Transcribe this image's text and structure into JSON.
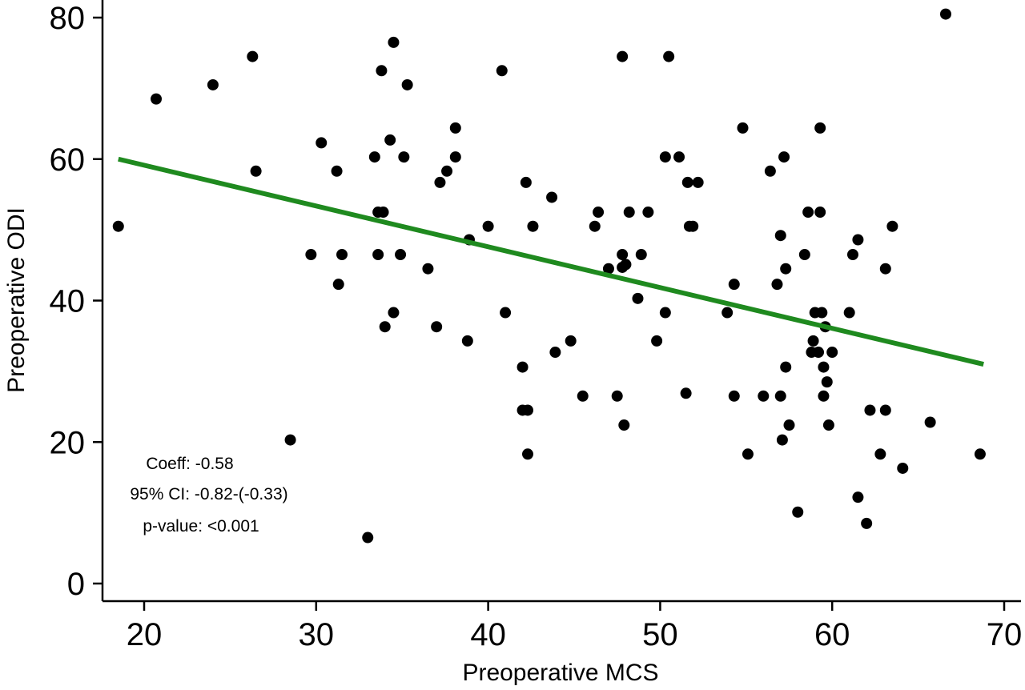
{
  "chart_data": {
    "type": "scatter",
    "xlabel": "Preoperative MCS",
    "ylabel": "Preoperative ODI",
    "xlim": [
      18,
      71
    ],
    "ylim": [
      -2,
      82
    ],
    "xticks": [
      20,
      30,
      40,
      50,
      60,
      70
    ],
    "yticks": [
      0,
      20,
      40,
      60,
      80
    ],
    "grid": false,
    "point_color": "#000000",
    "fit_line": {
      "color": "#1f8a1f",
      "points": [
        [
          18.5,
          60
        ],
        [
          68.8,
          31
        ]
      ]
    },
    "annotations": [
      "Coeff: -0.58",
      "95% CI: -0.82-(-0.33)",
      "p-value: <0.001"
    ],
    "points": [
      [
        18.5,
        50.5
      ],
      [
        20.7,
        68.5
      ],
      [
        24,
        70.5
      ],
      [
        26.3,
        74.5
      ],
      [
        26.5,
        58.3
      ],
      [
        28.5,
        20.3
      ],
      [
        29.7,
        46.5
      ],
      [
        30.3,
        62.3
      ],
      [
        31.2,
        58.3
      ],
      [
        31.3,
        42.3
      ],
      [
        31.5,
        46.5
      ],
      [
        33,
        6.5
      ],
      [
        33.4,
        60.3
      ],
      [
        33.6,
        52.5
      ],
      [
        33.6,
        46.5
      ],
      [
        33.8,
        72.5
      ],
      [
        33.9,
        52.5
      ],
      [
        34,
        36.3
      ],
      [
        34.3,
        62.7
      ],
      [
        34.5,
        76.5
      ],
      [
        34.5,
        38.3
      ],
      [
        34.9,
        46.5
      ],
      [
        35.1,
        60.3
      ],
      [
        35.3,
        70.5
      ],
      [
        36.5,
        44.5
      ],
      [
        37,
        36.3
      ],
      [
        37.2,
        56.7
      ],
      [
        37.6,
        58.3
      ],
      [
        38.1,
        64.4
      ],
      [
        38.1,
        60.3
      ],
      [
        38.8,
        34.3
      ],
      [
        38.9,
        48.6
      ],
      [
        40,
        50.5
      ],
      [
        40.8,
        72.5
      ],
      [
        41,
        38.3
      ],
      [
        42,
        30.6
      ],
      [
        42,
        24.5
      ],
      [
        42.2,
        56.7
      ],
      [
        42.3,
        24.5
      ],
      [
        42.3,
        18.3
      ],
      [
        42.6,
        50.5
      ],
      [
        43.7,
        54.6
      ],
      [
        43.9,
        32.7
      ],
      [
        44.8,
        34.3
      ],
      [
        45.5,
        26.5
      ],
      [
        46.2,
        50.5
      ],
      [
        46.4,
        52.5
      ],
      [
        47,
        44.5
      ],
      [
        47.5,
        26.5
      ],
      [
        47.8,
        74.5
      ],
      [
        47.8,
        46.5
      ],
      [
        47.8,
        44.7
      ],
      [
        47.9,
        22.4
      ],
      [
        48,
        45.1
      ],
      [
        48.2,
        52.5
      ],
      [
        48.7,
        40.3
      ],
      [
        48.9,
        46.5
      ],
      [
        49.3,
        52.5
      ],
      [
        49.8,
        34.3
      ],
      [
        50.3,
        38.3
      ],
      [
        50.3,
        60.3
      ],
      [
        50.5,
        74.5
      ],
      [
        51.1,
        60.3
      ],
      [
        51.5,
        26.9
      ],
      [
        51.6,
        56.7
      ],
      [
        51.7,
        50.5
      ],
      [
        51.9,
        50.5
      ],
      [
        52.2,
        56.7
      ],
      [
        53.9,
        38.3
      ],
      [
        54.3,
        42.3
      ],
      [
        54.3,
        26.5
      ],
      [
        54.8,
        64.4
      ],
      [
        55.1,
        18.3
      ],
      [
        56,
        26.5
      ],
      [
        56.4,
        58.3
      ],
      [
        56.8,
        42.3
      ],
      [
        57,
        26.5
      ],
      [
        57,
        49.2
      ],
      [
        57.1,
        20.3
      ],
      [
        57.2,
        60.3
      ],
      [
        57.3,
        44.5
      ],
      [
        57.3,
        30.6
      ],
      [
        57.5,
        22.4
      ],
      [
        58,
        10.1
      ],
      [
        58.4,
        46.5
      ],
      [
        58.6,
        52.5
      ],
      [
        58.8,
        32.7
      ],
      [
        58.9,
        34.3
      ],
      [
        59,
        38.3
      ],
      [
        59.2,
        32.7
      ],
      [
        59.3,
        64.4
      ],
      [
        59.3,
        52.5
      ],
      [
        59.4,
        38.3
      ],
      [
        59.5,
        26.5
      ],
      [
        59.5,
        30.6
      ],
      [
        59.6,
        36.3
      ],
      [
        59.7,
        28.5
      ],
      [
        59.8,
        22.4
      ],
      [
        60,
        32.7
      ],
      [
        61,
        38.3
      ],
      [
        61.2,
        46.5
      ],
      [
        61.5,
        48.6
      ],
      [
        61.5,
        12.2
      ],
      [
        62,
        8.5
      ],
      [
        62.2,
        24.5
      ],
      [
        62.8,
        18.3
      ],
      [
        63.1,
        44.5
      ],
      [
        63.1,
        24.5
      ],
      [
        63.5,
        50.5
      ],
      [
        64.1,
        16.3
      ],
      [
        65.7,
        22.8
      ],
      [
        66.6,
        80.5
      ],
      [
        68.6,
        18.3
      ]
    ]
  }
}
